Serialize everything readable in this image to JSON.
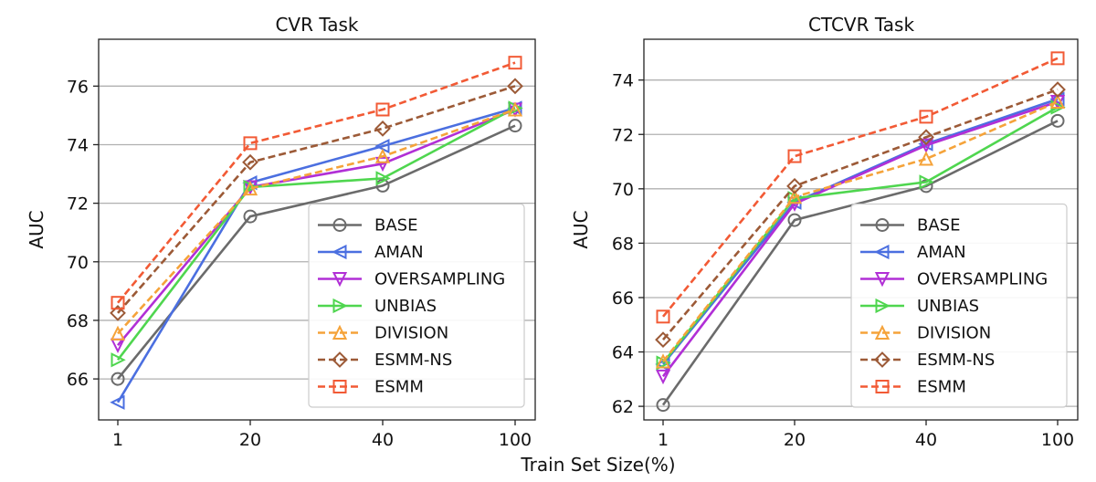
{
  "chart_data": [
    {
      "type": "line",
      "title": "CVR Task",
      "xlabel": "Train Set Size(%)",
      "ylabel": "AUC",
      "categories": [
        "1",
        "20",
        "40",
        "100"
      ],
      "ylim": [
        64.6,
        77.6
      ],
      "yticks": [
        66,
        68,
        70,
        72,
        74,
        76
      ],
      "grid": "horizontal",
      "legend_position": "bottom-right",
      "series": [
        {
          "name": "BASE",
          "values": [
            66.0,
            71.55,
            72.6,
            74.65
          ],
          "color": "#6b6b6b",
          "marker": "circle",
          "dashed": false
        },
        {
          "name": "AMAN",
          "values": [
            65.2,
            72.7,
            73.95,
            75.25
          ],
          "color": "#4b6fe0",
          "marker": "triangle-left",
          "dashed": false
        },
        {
          "name": "OVERSAMPLING",
          "values": [
            67.15,
            72.55,
            73.35,
            75.2
          ],
          "color": "#b12fd6",
          "marker": "triangle-down",
          "dashed": false
        },
        {
          "name": "UNBIAS",
          "values": [
            66.65,
            72.55,
            72.85,
            75.25
          ],
          "color": "#4fd64f",
          "marker": "triangle-right",
          "dashed": false
        },
        {
          "name": "DIVISION",
          "values": [
            67.55,
            72.5,
            73.6,
            75.2
          ],
          "color": "#f5a33a",
          "marker": "triangle-up",
          "dashed": true
        },
        {
          "name": "ESMM-NS",
          "values": [
            68.25,
            73.4,
            74.55,
            76.0
          ],
          "color": "#9c5a37",
          "marker": "diamond",
          "dashed": true
        },
        {
          "name": "ESMM",
          "values": [
            68.6,
            74.05,
            75.2,
            76.8
          ],
          "color": "#f25a35",
          "marker": "square",
          "dashed": true
        }
      ]
    },
    {
      "type": "line",
      "title": "CTCVR Task",
      "xlabel": "Train Set Size(%)",
      "ylabel": "AUC",
      "categories": [
        "1",
        "20",
        "40",
        "100"
      ],
      "ylim": [
        61.5,
        75.5
      ],
      "yticks": [
        62,
        64,
        66,
        68,
        70,
        72,
        74
      ],
      "grid": "horizontal",
      "legend_position": "bottom-right",
      "series": [
        {
          "name": "BASE",
          "values": [
            62.05,
            68.85,
            70.1,
            72.5
          ],
          "color": "#6b6b6b",
          "marker": "circle",
          "dashed": false
        },
        {
          "name": "AMAN",
          "values": [
            63.55,
            69.5,
            71.65,
            73.3
          ],
          "color": "#4b6fe0",
          "marker": "triangle-left",
          "dashed": false
        },
        {
          "name": "OVERSAMPLING",
          "values": [
            63.1,
            69.45,
            71.6,
            73.2
          ],
          "color": "#b12fd6",
          "marker": "triangle-down",
          "dashed": false
        },
        {
          "name": "UNBIAS",
          "values": [
            63.6,
            69.65,
            70.25,
            73.0
          ],
          "color": "#4fd64f",
          "marker": "triangle-right",
          "dashed": false
        },
        {
          "name": "DIVISION",
          "values": [
            63.65,
            69.7,
            71.1,
            73.2
          ],
          "color": "#f5a33a",
          "marker": "triangle-up",
          "dashed": true
        },
        {
          "name": "ESMM-NS",
          "values": [
            64.45,
            70.1,
            71.9,
            73.65
          ],
          "color": "#9c5a37",
          "marker": "diamond",
          "dashed": true
        },
        {
          "name": "ESMM",
          "values": [
            65.3,
            71.2,
            72.65,
            74.8
          ],
          "color": "#f25a35",
          "marker": "square",
          "dashed": true
        }
      ]
    }
  ],
  "shared_xlabel": "Train Set Size(%)"
}
